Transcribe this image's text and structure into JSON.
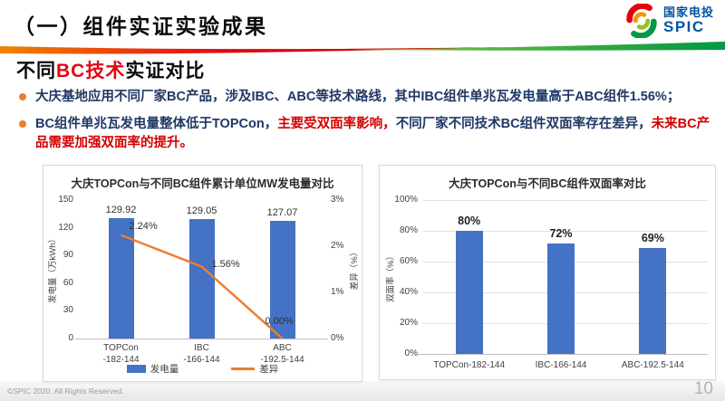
{
  "header": {
    "title": "（一）组件实证实验成果",
    "logo": {
      "cn": "国家电投",
      "en": "SPIC"
    }
  },
  "section": {
    "title_parts": [
      {
        "text": "不同",
        "color": "#0a0a0a"
      },
      {
        "text": "BC技术",
        "color": "#E30613"
      },
      {
        "text": "实证对比",
        "color": "#0a0a0a"
      }
    ]
  },
  "bullets": [
    {
      "segments": [
        {
          "text": "大庆基地应用不同厂家BC产品，涉及IBC、ABC等技术路线，其中IBC组件单兆瓦发电量高于ABC组件1.56%；",
          "color": "#1F3864"
        }
      ]
    },
    {
      "segments": [
        {
          "text": "BC组件单兆瓦发电量整体低于TOPCon，",
          "color": "#1F3864"
        },
        {
          "text": "主要受双面率影响，",
          "color": "#D40000"
        },
        {
          "text": "不同厂家不同技术BC组件双面率存在差异，",
          "color": "#1F3864"
        },
        {
          "text": "未来BC产品需要加强双面率的提升。",
          "color": "#D40000"
        }
      ]
    }
  ],
  "chart_data": [
    {
      "type": "bar",
      "subtype": "combo-bar-line",
      "title": "大庆TOPCon与不同BC组件累计单位MW发电量对比",
      "categories": [
        [
          "TOPCon",
          "-182-144"
        ],
        [
          "IBC",
          "-166-144"
        ],
        [
          "ABC",
          "-192.5-144"
        ]
      ],
      "series": [
        {
          "name": "发电量",
          "type": "bar",
          "axis": "left",
          "values": [
            129.92,
            129.05,
            127.07
          ],
          "labels": [
            "129.92",
            "129.05",
            "127.07"
          ],
          "color": "#4472C4"
        },
        {
          "name": "差异",
          "type": "line",
          "axis": "right",
          "values": [
            2.24,
            1.56,
            0.0
          ],
          "labels": [
            "2.24%",
            "1.56%",
            "0.00%"
          ],
          "color": "#ED7D31"
        }
      ],
      "ylabel": "发电量（万kWh）",
      "ylim": [
        0,
        150
      ],
      "yticks": [
        0,
        30,
        60,
        90,
        120,
        150
      ],
      "y2label": "差异（%）",
      "y2lim": [
        0,
        3
      ],
      "y2ticks": [
        "0%",
        "1%",
        "2%",
        "3%"
      ],
      "grid": false,
      "legend_position": "bottom"
    },
    {
      "type": "bar",
      "title": "大庆TOPCon与不同BC组件双面率对比",
      "categories": [
        "TOPCon-182-144",
        "IBC-166-144",
        "ABC-192.5-144"
      ],
      "values": [
        80,
        72,
        69
      ],
      "value_labels": [
        "80%",
        "72%",
        "69%"
      ],
      "ylabel": "双面率（%）",
      "ylim": [
        0,
        100
      ],
      "yticks": [
        "0%",
        "20%",
        "40%",
        "60%",
        "80%",
        "100%"
      ],
      "bar_color": "#4472C4",
      "grid": true,
      "legend_position": "none"
    }
  ],
  "footer": {
    "copyright": "©SPIC 2020. All Rights Reserved.",
    "page": "10"
  },
  "colors": {
    "bar_blue": "#4472C4",
    "line_orange": "#ED7D31",
    "bullet_orange": "#ED7D31",
    "text_navy": "#1F3864",
    "text_red": "#D40000",
    "logo_blue": "#0054A5"
  }
}
